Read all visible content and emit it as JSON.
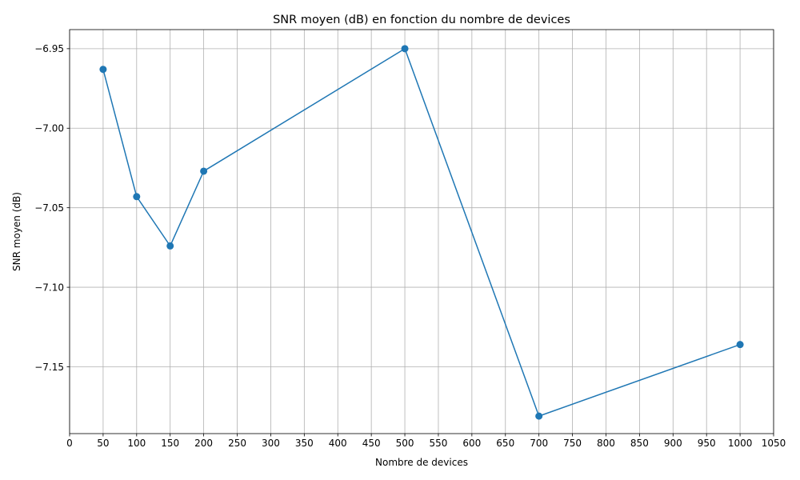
{
  "chart_data": {
    "type": "line",
    "title": "SNR moyen (dB) en fonction du nombre de devices",
    "xlabel": "Nombre de devices",
    "ylabel": "SNR moyen (dB)",
    "xlim": [
      0,
      1050
    ],
    "ylim": [
      -7.192,
      -6.938
    ],
    "x_ticks": [
      0,
      50,
      100,
      150,
      200,
      250,
      300,
      350,
      400,
      450,
      500,
      550,
      600,
      650,
      700,
      750,
      800,
      850,
      900,
      950,
      1000,
      1050
    ],
    "y_ticks": [
      -7.15,
      -7.1,
      -7.05,
      -7.0,
      -6.95
    ],
    "y_tick_labels": [
      "−7.15",
      "−7.10",
      "−7.05",
      "−7.00",
      "−6.95"
    ],
    "grid": true,
    "series": [
      {
        "color": "#1f77b4",
        "marker": "circle",
        "x": [
          50,
          100,
          150,
          200,
          500,
          700,
          1000
        ],
        "y": [
          -6.963,
          -7.043,
          -7.074,
          -7.027,
          -6.95,
          -7.181,
          -7.136
        ]
      }
    ]
  }
}
